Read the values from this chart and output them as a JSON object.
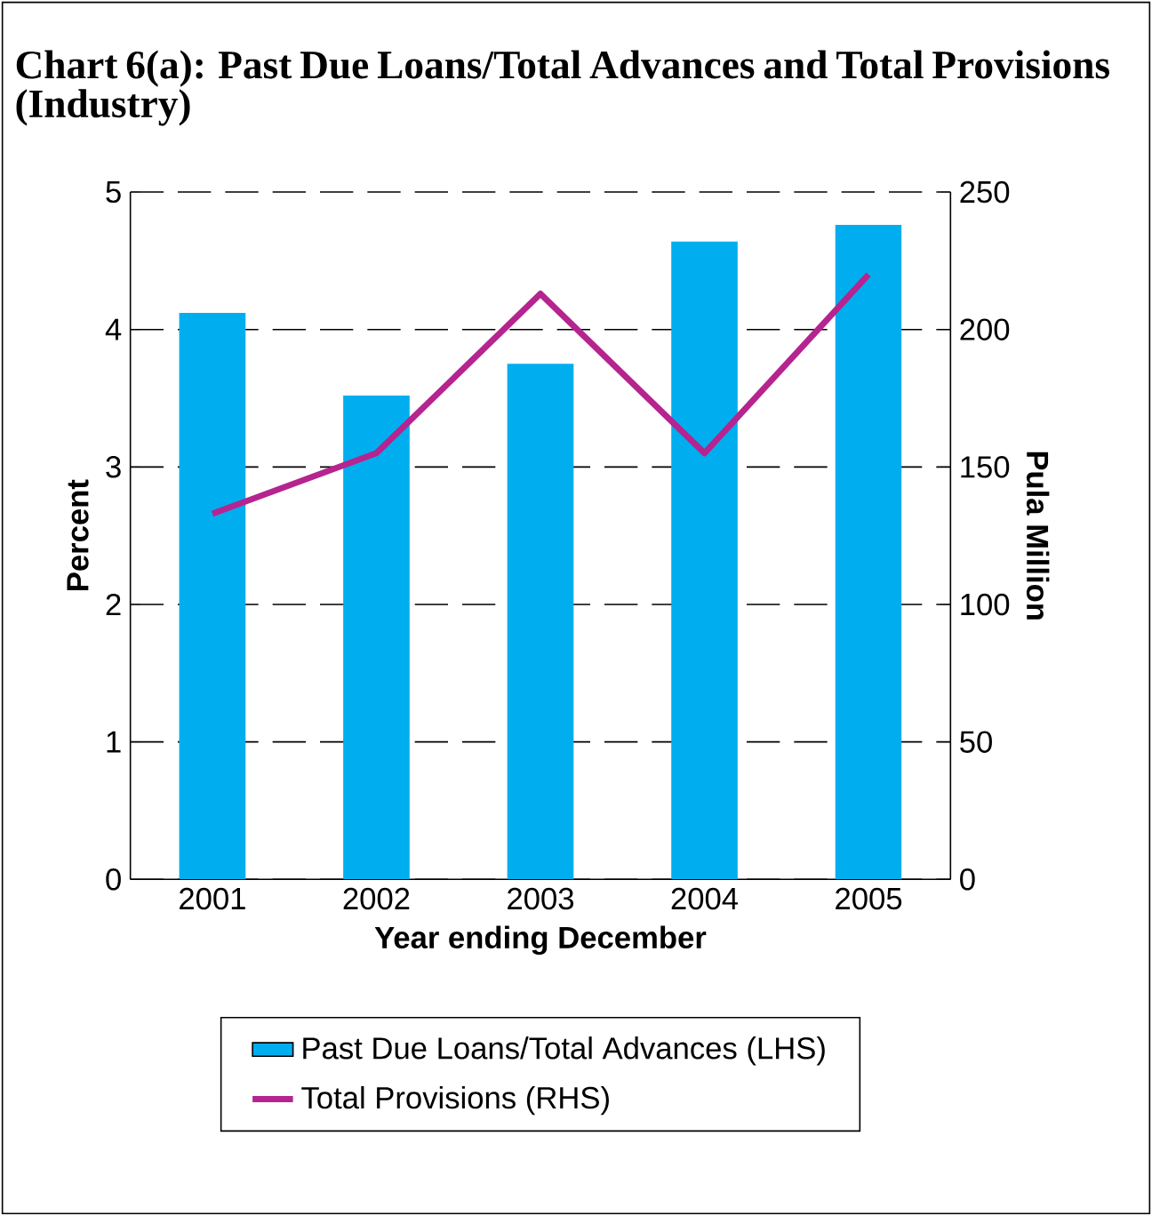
{
  "chart_data": {
    "type": "bar",
    "title": "Chart 6(a): Past Due Loans/Total Advances and Total Provisions (Industry)",
    "xlabel": "Year ending December",
    "ylabel": "Percent",
    "y2label": "Pula Million",
    "categories": [
      "2001",
      "2002",
      "2003",
      "2004",
      "2005"
    ],
    "series": [
      {
        "name": "Past Due Loans/Total Advances (LHS)",
        "color": "#00aeef",
        "values": [
          4.12,
          3.52,
          3.75,
          4.64,
          4.76
        ]
      },
      {
        "name": "Total Provisions (RHS)",
        "type": "line",
        "axis": "y2",
        "color": "#b5248f",
        "values": [
          133,
          155,
          213,
          155,
          220
        ]
      }
    ],
    "ylim": [
      0,
      5
    ],
    "yticks": [
      0,
      1,
      2,
      3,
      4,
      5
    ],
    "y2lim": [
      0,
      250
    ],
    "y2ticks": [
      0,
      50,
      100,
      150,
      200,
      250
    ],
    "grid": "y",
    "legend": "bottom"
  }
}
